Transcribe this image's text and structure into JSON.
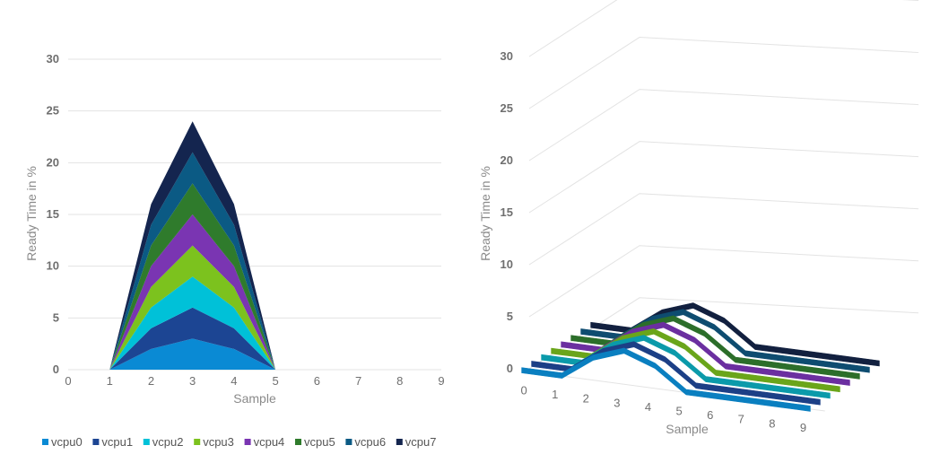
{
  "chart_data": [
    {
      "type": "area",
      "stacked": true,
      "xlabel": "Sample",
      "ylabel": "Ready Time in %",
      "ylim": [
        0,
        30
      ],
      "yticks": [
        "0",
        "5",
        "10",
        "15",
        "20",
        "25",
        "30"
      ],
      "xlim": [
        0,
        9
      ],
      "xticks": [
        "0",
        "1",
        "2",
        "3",
        "4",
        "5",
        "6",
        "7",
        "8",
        "9"
      ],
      "grid": true,
      "legend_position": "bottom",
      "x": [
        1,
        2,
        3,
        4,
        5
      ],
      "series": [
        {
          "name": "vcpu0",
          "color": "#0a8ad4",
          "values": [
            0,
            2,
            3,
            2,
            0
          ]
        },
        {
          "name": "vcpu1",
          "color": "#1c4593",
          "values": [
            0,
            2,
            3,
            2,
            0
          ]
        },
        {
          "name": "vcpu2",
          "color": "#00c1d8",
          "values": [
            0,
            2,
            3,
            2,
            0
          ]
        },
        {
          "name": "vcpu3",
          "color": "#7cc21e",
          "values": [
            0,
            2,
            3,
            2,
            0
          ]
        },
        {
          "name": "vcpu4",
          "color": "#7a35b2",
          "values": [
            0,
            2,
            3,
            2,
            0
          ]
        },
        {
          "name": "vcpu5",
          "color": "#2f7b2c",
          "values": [
            0,
            2,
            3,
            2,
            0
          ]
        },
        {
          "name": "vcpu6",
          "color": "#0b5a84",
          "values": [
            0,
            2,
            3,
            2,
            0
          ]
        },
        {
          "name": "vcpu7",
          "color": "#14254f",
          "values": [
            0,
            2,
            3,
            2,
            0
          ]
        }
      ]
    },
    {
      "type": "line",
      "projection": "3d",
      "xlabel": "Sample",
      "ylabel": "Ready Time in %",
      "ylim": [
        0,
        30
      ],
      "yticks": [
        "0",
        "5",
        "10",
        "15",
        "20",
        "25",
        "30"
      ],
      "xticks": [
        "0",
        "1",
        "2",
        "3",
        "4",
        "5",
        "6",
        "7",
        "8",
        "9"
      ],
      "grid": true,
      "x": [
        0,
        1,
        2,
        3,
        4,
        5,
        6,
        7,
        8,
        9
      ],
      "series": [
        {
          "color": "#0a7fc0",
          "values": [
            0,
            0,
            2,
            3,
            2,
            0,
            0,
            0,
            0,
            0
          ]
        },
        {
          "color": "#1c3f86",
          "values": [
            0,
            0,
            2,
            3,
            2,
            0,
            0,
            0,
            0,
            0
          ]
        },
        {
          "color": "#0b9aaa",
          "values": [
            0,
            0,
            2,
            3,
            2,
            0,
            0,
            0,
            0,
            0
          ]
        },
        {
          "color": "#6aa51a",
          "values": [
            0,
            0,
            2,
            3,
            2,
            0,
            0,
            0,
            0,
            0
          ]
        },
        {
          "color": "#6b2fa0",
          "values": [
            0,
            0,
            2,
            3,
            2,
            0,
            0,
            0,
            0,
            0
          ]
        },
        {
          "color": "#2c6e2a",
          "values": [
            0,
            0,
            2,
            3,
            2,
            0,
            0,
            0,
            0,
            0
          ]
        },
        {
          "color": "#0e4c70",
          "values": [
            0,
            0,
            2,
            3,
            2,
            0,
            0,
            0,
            0,
            0
          ]
        },
        {
          "color": "#12203f",
          "values": [
            0,
            0,
            2,
            3,
            2,
            0,
            0,
            0,
            0,
            0
          ]
        }
      ]
    }
  ]
}
